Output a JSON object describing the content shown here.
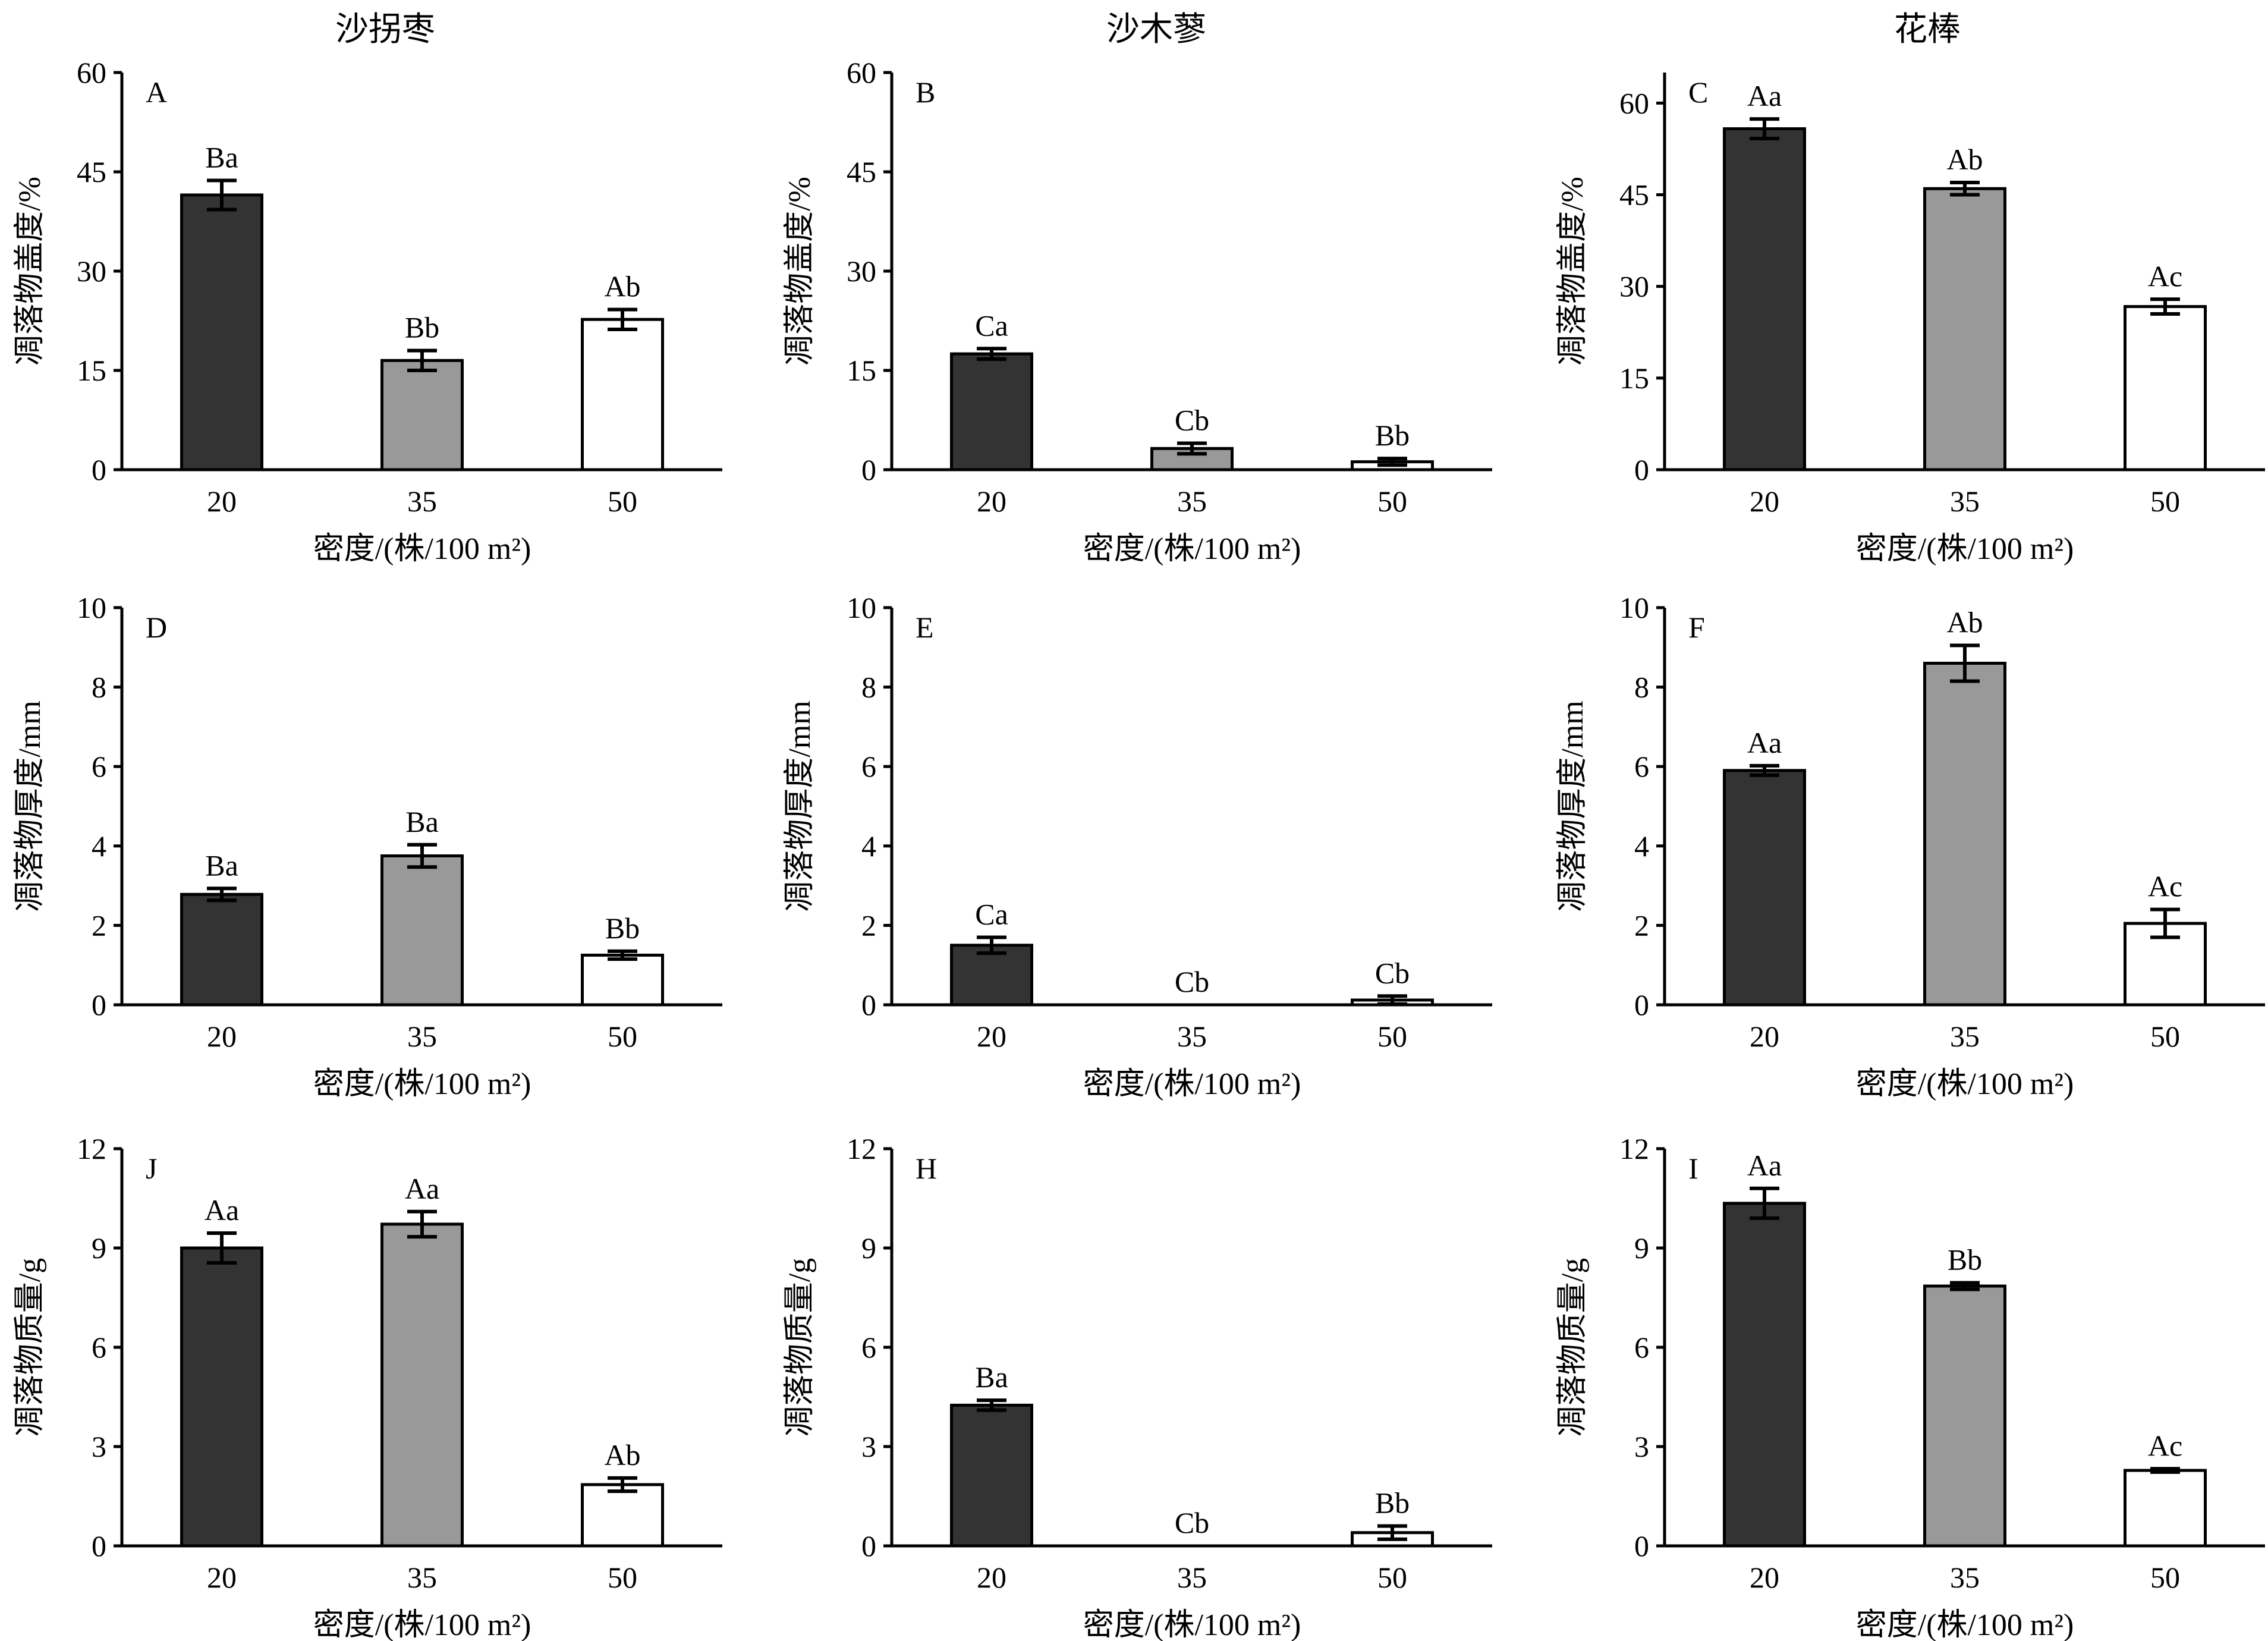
{
  "columns": [
    "沙拐枣",
    "沙木蓼",
    "花棒"
  ],
  "colors": {
    "20": "#333333",
    "35": "#999999",
    "50": "#ffffff",
    "outline": "#000000"
  },
  "chart_data": [
    {
      "panel": "A",
      "type": "bar",
      "categories": [
        "20",
        "35",
        "50"
      ],
      "values": [
        41.5,
        16.5,
        22.7
      ],
      "errors": [
        2.2,
        1.5,
        1.5
      ],
      "sig": [
        "Ba",
        "Bb",
        "Ab"
      ],
      "ylim": [
        0,
        60
      ],
      "yticks": [
        0,
        15,
        30,
        45,
        60
      ],
      "ylabel": "凋落物盖度/%",
      "xlabel": "密度/(株/100 m²)"
    },
    {
      "panel": "B",
      "type": "bar",
      "categories": [
        "20",
        "35",
        "50"
      ],
      "values": [
        17.5,
        3.2,
        1.2
      ],
      "errors": [
        0.8,
        0.8,
        0.5
      ],
      "sig": [
        "Ca",
        "Cb",
        "Bb"
      ],
      "ylim": [
        0,
        60
      ],
      "yticks": [
        0,
        15,
        30,
        45,
        60
      ],
      "ylabel": "凋落物盖度/%",
      "xlabel": "密度/(株/100 m²)"
    },
    {
      "panel": "C",
      "type": "bar",
      "categories": [
        "20",
        "35",
        "50"
      ],
      "values": [
        55.8,
        46.0,
        26.7
      ],
      "errors": [
        1.6,
        1.0,
        1.2
      ],
      "sig": [
        "Aa",
        "Ab",
        "Ac"
      ],
      "ylim": [
        0,
        65
      ],
      "yticks": [
        0,
        15,
        30,
        45,
        60
      ],
      "ylabel": "凋落物盖度/%",
      "xlabel": "密度/(株/100 m²)"
    },
    {
      "panel": "D",
      "type": "bar",
      "categories": [
        "20",
        "35",
        "50"
      ],
      "values": [
        2.78,
        3.75,
        1.25
      ],
      "errors": [
        0.15,
        0.28,
        0.1
      ],
      "sig": [
        "Ba",
        "Ba",
        "Bb"
      ],
      "ylim": [
        0,
        10
      ],
      "yticks": [
        0,
        2,
        4,
        6,
        8,
        10
      ],
      "ylabel": "凋落物厚度/mm",
      "xlabel": "密度/(株/100 m²)"
    },
    {
      "panel": "E",
      "type": "bar",
      "categories": [
        "20",
        "35",
        "50"
      ],
      "values": [
        1.5,
        0,
        0.12
      ],
      "errors": [
        0.2,
        0,
        0.1
      ],
      "sig": [
        "Ca",
        "Cb",
        "Cb"
      ],
      "ylim": [
        0,
        10
      ],
      "yticks": [
        0,
        2,
        4,
        6,
        8,
        10
      ],
      "ylabel": "凋落物厚度/mm",
      "xlabel": "密度/(株/100 m²)"
    },
    {
      "panel": "F",
      "type": "bar",
      "categories": [
        "20",
        "35",
        "50"
      ],
      "values": [
        5.9,
        8.6,
        2.05
      ],
      "errors": [
        0.12,
        0.45,
        0.35
      ],
      "sig": [
        "Aa",
        "Ab",
        "Ac"
      ],
      "ylim": [
        0,
        10
      ],
      "yticks": [
        0,
        2,
        4,
        6,
        8,
        10
      ],
      "ylabel": "凋落物厚度/mm",
      "xlabel": "密度/(株/100 m²)"
    },
    {
      "panel": "J",
      "type": "bar",
      "categories": [
        "20",
        "35",
        "50"
      ],
      "values": [
        9.0,
        9.72,
        1.85
      ],
      "errors": [
        0.45,
        0.38,
        0.2
      ],
      "sig": [
        "Aa",
        "Aa",
        "Ab"
      ],
      "ylim": [
        0,
        12
      ],
      "yticks": [
        0,
        3,
        6,
        9,
        12
      ],
      "ylabel": "凋落物质量/g",
      "xlabel": "密度/(株/100 m²)"
    },
    {
      "panel": "H",
      "type": "bar",
      "categories": [
        "20",
        "35",
        "50"
      ],
      "values": [
        4.25,
        0,
        0.4
      ],
      "errors": [
        0.15,
        0,
        0.2
      ],
      "sig": [
        "Ba",
        "Cb",
        "Bb"
      ],
      "ylim": [
        0,
        12
      ],
      "yticks": [
        0,
        3,
        6,
        9,
        12
      ],
      "ylabel": "凋落物质量/g",
      "xlabel": "密度/(株/100 m²)"
    },
    {
      "panel": "I",
      "type": "bar",
      "categories": [
        "20",
        "35",
        "50"
      ],
      "values": [
        10.35,
        7.85,
        2.28
      ],
      "errors": [
        0.45,
        0.1,
        0.05
      ],
      "sig": [
        "Aa",
        "Bb",
        "Ac"
      ],
      "ylim": [
        0,
        12
      ],
      "yticks": [
        0,
        3,
        6,
        9,
        12
      ],
      "ylabel": "凋落物质量/g",
      "xlabel": "密度/(株/100 m²)"
    }
  ]
}
